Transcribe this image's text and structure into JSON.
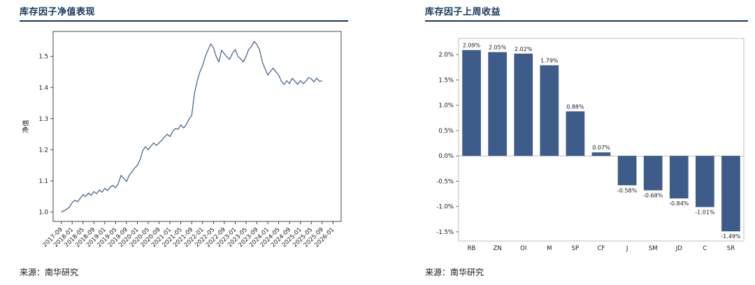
{
  "colors": {
    "accent": "#17375e",
    "series": "#3e5c8a",
    "axis": "#333333"
  },
  "panels": [
    {
      "title": "库存因子净值表现",
      "source": "来源：南华研究"
    },
    {
      "title": "库存因子上周收益",
      "source": "来源：南华研究"
    }
  ],
  "chart_data": [
    {
      "type": "line",
      "title": "库存因子净值表现",
      "xlabel": "",
      "ylabel": "净值",
      "ylim": [
        0.97,
        1.58
      ],
      "grid": false,
      "legend": "none",
      "y_ticks": [
        {
          "value": 1.0,
          "label": "1.0"
        },
        {
          "value": 1.1,
          "label": "1.1"
        },
        {
          "value": 1.2,
          "label": "1.2"
        },
        {
          "value": 1.3,
          "label": "1.3"
        },
        {
          "value": 1.4,
          "label": "1.4"
        },
        {
          "value": 1.5,
          "label": "1.5"
        }
      ],
      "x_ticks": [
        "2017-09",
        "2018-01",
        "2018-05",
        "2018-09",
        "2019-01",
        "2019-05",
        "2019-09",
        "2020-01",
        "2020-05",
        "2020-09",
        "2021-01",
        "2021-05",
        "2021-09",
        "2022-01",
        "2022-05",
        "2022-09",
        "2023-01",
        "2023-05",
        "2023-09",
        "2024-01",
        "2024-05",
        "2024-09",
        "2025-01",
        "2025-05",
        "2025-09",
        "2026-01"
      ],
      "x_tick_step": 4,
      "series": [
        {
          "name": "净值",
          "values": [
            1.0,
            1.004,
            1.009,
            1.016,
            1.03,
            1.038,
            1.033,
            1.045,
            1.056,
            1.05,
            1.061,
            1.054,
            1.066,
            1.059,
            1.071,
            1.064,
            1.076,
            1.069,
            1.08,
            1.086,
            1.078,
            1.092,
            1.118,
            1.108,
            1.098,
            1.118,
            1.13,
            1.141,
            1.15,
            1.168,
            1.198,
            1.21,
            1.2,
            1.212,
            1.222,
            1.214,
            1.222,
            1.231,
            1.241,
            1.25,
            1.242,
            1.259,
            1.268,
            1.266,
            1.28,
            1.27,
            1.281,
            1.298,
            1.31,
            1.38,
            1.42,
            1.45,
            1.47,
            1.5,
            1.52,
            1.54,
            1.528,
            1.5,
            1.482,
            1.52,
            1.508,
            1.498,
            1.49,
            1.51,
            1.522,
            1.5,
            1.492,
            1.482,
            1.5,
            1.522,
            1.532,
            1.548,
            1.538,
            1.52,
            1.482,
            1.46,
            1.44,
            1.452,
            1.462,
            1.45,
            1.44,
            1.42,
            1.41,
            1.422,
            1.412,
            1.43,
            1.42,
            1.41,
            1.422,
            1.412,
            1.42,
            1.432,
            1.428,
            1.418,
            1.43,
            1.42,
            1.421
          ]
        }
      ]
    },
    {
      "type": "bar",
      "title": "库存因子上周收益",
      "xlabel": "",
      "ylabel": "",
      "ylim": [
        -1.68,
        2.32
      ],
      "grid": false,
      "legend": "none",
      "categories": [
        "RB",
        "ZN",
        "OI",
        "M",
        "SP",
        "CF",
        "J",
        "SM",
        "JD",
        "C",
        "SR"
      ],
      "values": [
        2.09,
        2.05,
        2.02,
        1.79,
        0.88,
        0.07,
        -0.58,
        -0.68,
        -0.84,
        -1.01,
        -1.49
      ],
      "bar_labels": [
        "2.09%",
        "2.05%",
        "2.02%",
        "1.79%",
        "0.88%",
        "0.07%",
        "-0.58%",
        "-0.68%",
        "-0.84%",
        "-1.01%",
        "-1.49%"
      ],
      "y_ticks": [
        {
          "value": 2.0,
          "label": "2.0%"
        },
        {
          "value": 1.5,
          "label": "1.5%"
        },
        {
          "value": 1.0,
          "label": "1.0%"
        },
        {
          "value": 0.5,
          "label": "0.5%"
        },
        {
          "value": 0.0,
          "label": "0.0%"
        },
        {
          "value": -0.5,
          "label": "-0.5%"
        },
        {
          "value": -1.0,
          "label": "-1.0%"
        },
        {
          "value": -1.5,
          "label": "-1.5%"
        }
      ]
    }
  ]
}
